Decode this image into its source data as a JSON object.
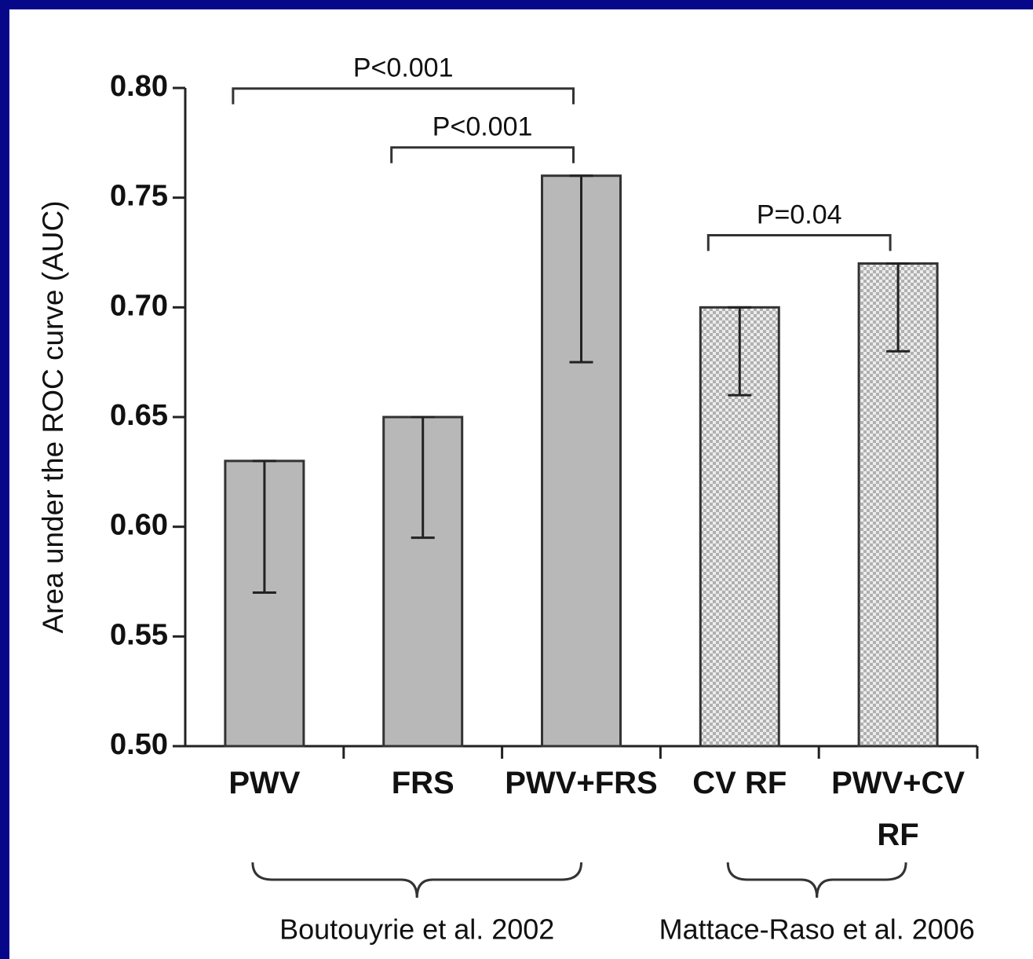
{
  "chart_data": {
    "type": "bar",
    "y_label": "Area under the ROC curve (AUC)",
    "categories": [
      "PWV",
      "FRS",
      "PWV+FRS",
      "CV RF",
      "PWV+CV RF"
    ],
    "values": [
      0.63,
      0.65,
      0.76,
      0.7,
      0.72
    ],
    "ci_low": [
      0.57,
      0.595,
      0.675,
      0.66,
      0.68
    ],
    "color": "#b8b8b8",
    "ylim": [
      0.5,
      0.8
    ],
    "yticks": [
      {
        "value": 0.5,
        "label": "0.50"
      },
      {
        "value": 0.55,
        "label": "0.55"
      },
      {
        "value": 0.6,
        "label": "0.60"
      },
      {
        "value": 0.65,
        "label": "0.65"
      },
      {
        "value": 0.7,
        "label": "0.70"
      },
      {
        "value": 0.75,
        "label": "0.75"
      },
      {
        "value": 0.8,
        "label": "0.80"
      }
    ],
    "groups": [
      {
        "label": "Boutouyrie et al. 2002",
        "members": [
          "PWV",
          "FRS",
          "PWV+FRS"
        ],
        "fill": "solid"
      },
      {
        "label": "Mattace-Raso et al. 2006",
        "members": [
          "CV RF",
          "PWV+CV RF"
        ],
        "fill": "checker"
      }
    ],
    "significance": [
      {
        "label": "P<0.001",
        "from": "FRS",
        "to": "PWV+FRS"
      },
      {
        "label": "P<0.001",
        "from": "PWV",
        "to": "PWV+FRS"
      },
      {
        "label": "P=0.04",
        "from": "CV RF",
        "to": "PWV+CV RF"
      }
    ]
  }
}
